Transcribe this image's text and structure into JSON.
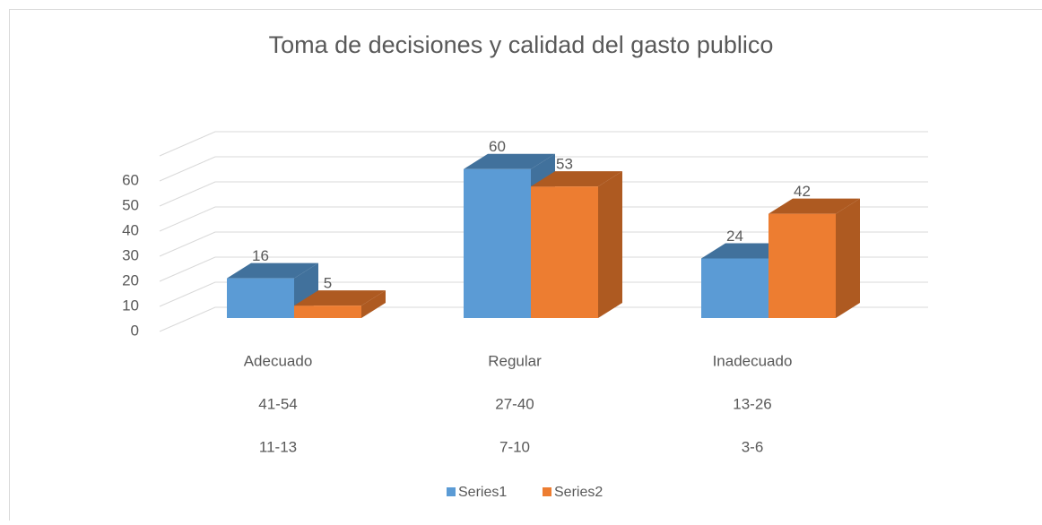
{
  "chart_data": {
    "type": "bar3d",
    "title": "Toma de decisiones  y calidad del gasto publico",
    "categories": [
      [
        "Adecuado",
        "41-54",
        "11-13"
      ],
      [
        "Regular",
        "27-40",
        "7-10"
      ],
      [
        "Inadecuado",
        "13-26",
        "3-6"
      ]
    ],
    "series": [
      {
        "name": "Series1",
        "color": "#5b9bd5",
        "shade": "#41719c",
        "values": [
          16,
          60,
          24
        ]
      },
      {
        "name": "Series2",
        "color": "#ed7d31",
        "shade": "#ae5a21",
        "values": [
          5,
          53,
          42
        ]
      }
    ],
    "ylim": [
      0,
      70
    ],
    "yticks": [
      0,
      10,
      20,
      30,
      40,
      50,
      60
    ],
    "grid": true,
    "legend": "bottom"
  }
}
